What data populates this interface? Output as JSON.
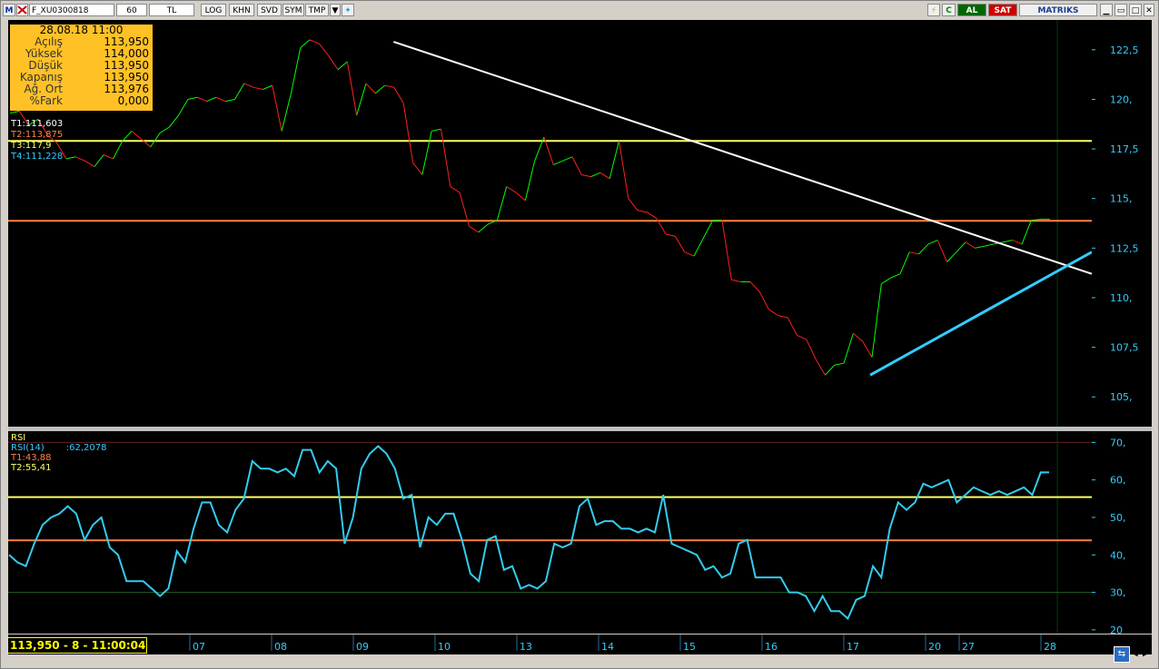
{
  "toolbar": {
    "symbol": "F_XU0300818",
    "period": "60",
    "currency": "TL",
    "buttons": [
      "LOG",
      "KHN",
      "SVD",
      "SYM",
      "TMP"
    ],
    "buy": "AL",
    "sell": "SAT",
    "brand": "MATRIKS"
  },
  "info_box": {
    "datetime": "28.08.18 11:00",
    "rows": [
      {
        "label": "Açılış",
        "value": "113,950"
      },
      {
        "label": "Yüksek",
        "value": "114,000"
      },
      {
        "label": "Düşük",
        "value": "113,950"
      },
      {
        "label": "Kapanış",
        "value": "113,950"
      },
      {
        "label": "Ağ. Ort",
        "value": "113,976"
      },
      {
        "label": "%Fark",
        "value": "0,000"
      }
    ]
  },
  "trend_labels": {
    "t1": "T1:111,603",
    "t2": "T2:113,875",
    "t3": "T3:117,9",
    "t4": "T4:111,228"
  },
  "rsi_labels": {
    "title": "RSI",
    "name": "RSI(14)",
    "value": ":62,2078",
    "t1": "T1:43,88",
    "t2": "T2:55,41"
  },
  "status": "113,950 - 8 - 11:00:04",
  "colors": {
    "background": "#000000",
    "up": "#00ff00",
    "down": "#ff2020",
    "trend_white": "#ffffff",
    "trend_cyan": "#33ccff",
    "level_yellow": "#ffff66",
    "level_orange": "#ff8040",
    "rsi": "#33ccee",
    "axis_text": "#33ccff",
    "info_bg": "#ffc125"
  },
  "chart_data": {
    "type": "line",
    "price": {
      "yticks": [
        "122,5",
        "120,",
        "117,5",
        "115,",
        "112,5",
        "110,",
        "107,5",
        "105,"
      ],
      "ytick_values": [
        122.5,
        120,
        117.5,
        115,
        112.5,
        110,
        107.5,
        105
      ],
      "ylim": [
        103.5,
        124
      ],
      "levels": [
        117.9,
        113.875
      ],
      "values": [
        119.3,
        119.4,
        118.7,
        119.0,
        118.2,
        117.8,
        117.0,
        117.1,
        116.9,
        116.6,
        117.2,
        117.0,
        117.9,
        118.4,
        118.0,
        117.6,
        118.3,
        118.6,
        119.2,
        120.0,
        120.1,
        119.9,
        120.1,
        119.9,
        120.0,
        120.8,
        120.6,
        120.5,
        120.7,
        118.4,
        120.3,
        122.6,
        123.0,
        122.8,
        122.2,
        121.5,
        121.9,
        119.2,
        120.8,
        120.3,
        120.7,
        120.6,
        119.8,
        116.8,
        116.2,
        118.4,
        118.5,
        115.6,
        115.3,
        113.6,
        113.3,
        113.7,
        113.9,
        115.6,
        115.3,
        114.9,
        116.9,
        118.1,
        116.7,
        116.9,
        117.1,
        116.2,
        116.1,
        116.3,
        116.0,
        117.9,
        115.0,
        114.4,
        114.3,
        114.0,
        113.2,
        113.1,
        112.3,
        112.1,
        113.0,
        113.9,
        113.9,
        110.9,
        110.8,
        110.8,
        110.3,
        109.4,
        109.1,
        109.0,
        108.1,
        107.9,
        106.9,
        106.1,
        106.6,
        106.7,
        108.2,
        107.8,
        107.0,
        110.7,
        111.0,
        111.2,
        112.3,
        112.2,
        112.7,
        112.9,
        111.8,
        112.3,
        112.8,
        112.5,
        112.6,
        112.7,
        112.8,
        112.9,
        112.7,
        113.9,
        113.95,
        113.95
      ],
      "trend_white": {
        "from": [
          0.3557,
          122.9
        ],
        "to": [
          1.0,
          111.2
        ]
      },
      "trend_cyan": {
        "from": [
          0.7955,
          106.1
        ],
        "to": [
          1.0,
          112.3
        ]
      }
    },
    "rsi": {
      "yticks": [
        "70,",
        "60,",
        "50,",
        "40,",
        "30,",
        "20"
      ],
      "ytick_values": [
        70,
        60,
        50,
        40,
        30,
        20
      ],
      "ylim": [
        19,
        73
      ],
      "levels": [
        55.41,
        43.88,
        30
      ],
      "values": [
        40,
        38,
        37,
        43,
        48,
        50,
        51,
        53,
        51,
        44,
        48,
        50,
        42,
        40,
        33,
        33,
        33,
        31,
        29,
        31,
        41,
        38,
        47,
        54,
        54,
        48,
        46,
        52,
        55,
        65,
        63,
        63,
        62,
        63,
        61,
        68,
        68,
        62,
        65,
        63,
        43,
        50,
        63,
        67,
        69,
        67,
        63,
        55,
        56,
        42,
        50,
        48,
        51,
        51,
        44,
        35,
        33,
        44,
        45,
        36,
        37,
        31,
        32,
        31,
        33,
        43,
        42,
        43,
        53,
        55,
        48,
        49,
        49,
        47,
        47,
        46,
        47,
        46,
        56,
        43,
        42,
        41,
        40,
        36,
        37,
        34,
        35,
        43,
        44,
        34,
        34,
        34,
        34,
        30,
        30,
        29,
        25,
        29,
        25,
        25,
        23,
        28,
        29,
        37,
        34,
        47,
        54,
        52,
        54,
        59,
        58,
        59,
        60,
        54,
        56,
        58,
        57,
        56,
        57,
        56,
        57,
        58,
        56,
        62,
        62
      ],
      "x_ticks": [
        "07",
        "08",
        "09",
        "10",
        "13",
        "14",
        "15",
        "16",
        "17",
        "20",
        "27",
        "28"
      ]
    }
  }
}
